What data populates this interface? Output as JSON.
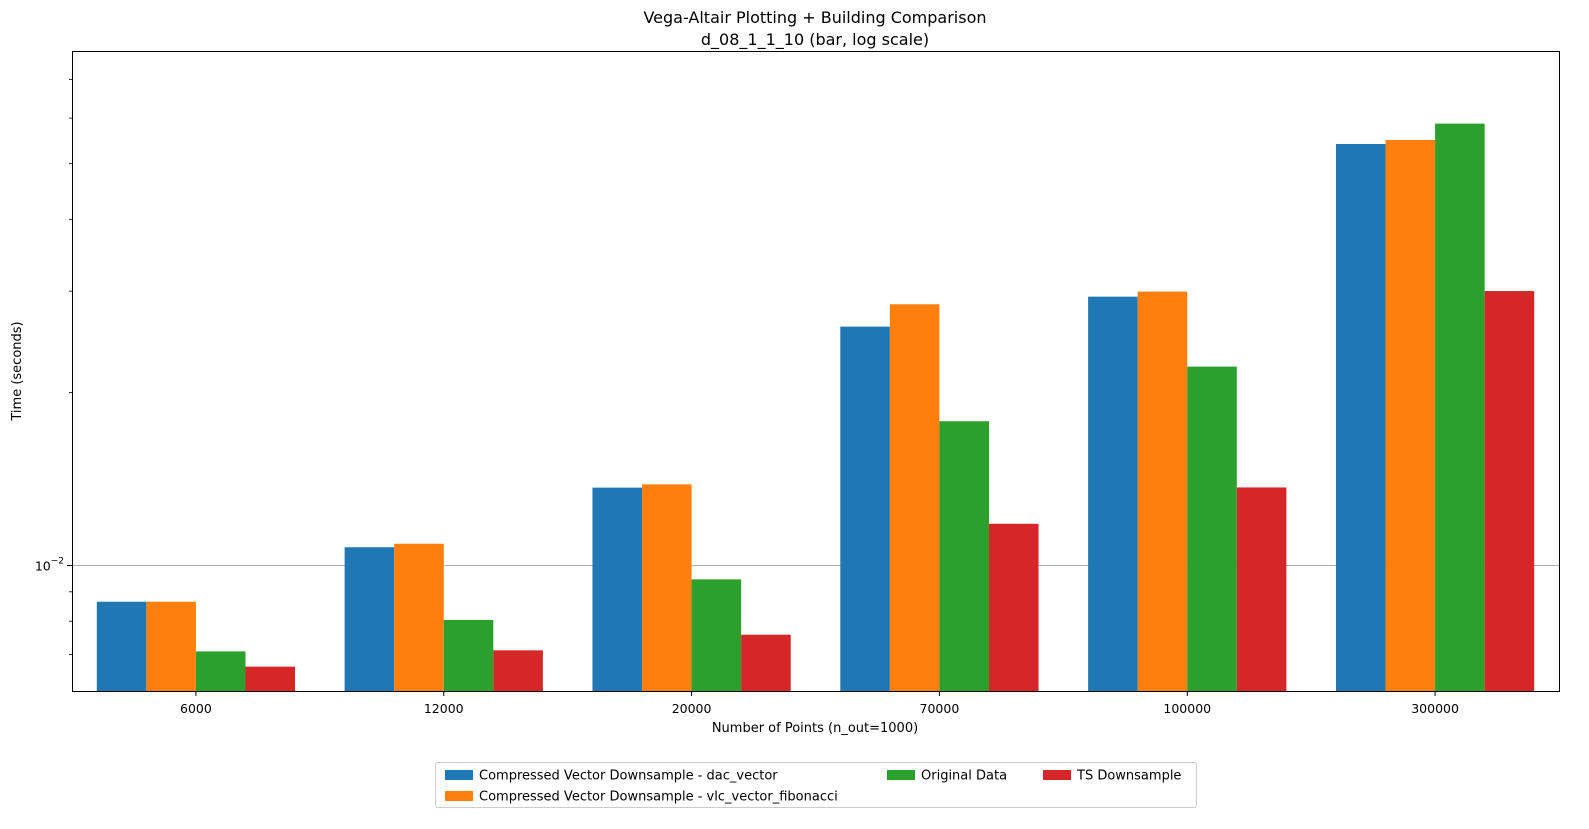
{
  "chart_data": {
    "type": "bar",
    "title": "Vega-Altair Plotting + Building Comparison",
    "subtitle": "d_08_1_1_10 (bar, log scale)",
    "xlabel": "Number of Points (n_out=1000)",
    "ylabel": "Time (seconds)",
    "yscale": "log",
    "ylim": [
      0.00605,
      0.0785
    ],
    "ytick_labels": [
      {
        "value": 0.01,
        "base": "10",
        "exponent": "−2"
      }
    ],
    "grid": "y-major",
    "legend_placement": "bottom-center",
    "categories": [
      "6000",
      "12000",
      "20000",
      "70000",
      "100000",
      "300000"
    ],
    "series": [
      {
        "name": "Compressed Vector Downsample - dac_vector",
        "color": "#1f77b4",
        "values": [
          0.00865,
          0.01076,
          0.01366,
          0.02603,
          0.02935,
          0.05409
        ]
      },
      {
        "name": "Compressed Vector Downsample - vlc_vector_fibonacci",
        "color": "#ff7f0e",
        "values": [
          0.00865,
          0.01091,
          0.01384,
          0.02847,
          0.02995,
          0.05497
        ]
      },
      {
        "name": "Original Data",
        "color": "#2ca02c",
        "values": [
          0.00709,
          0.00804,
          0.00946,
          0.01782,
          0.02218,
          0.05869
        ]
      },
      {
        "name": "TS Downsample",
        "color": "#d62728",
        "values": [
          0.00667,
          0.00712,
          0.00758,
          0.01182,
          0.01367,
          0.03002
        ]
      }
    ]
  }
}
